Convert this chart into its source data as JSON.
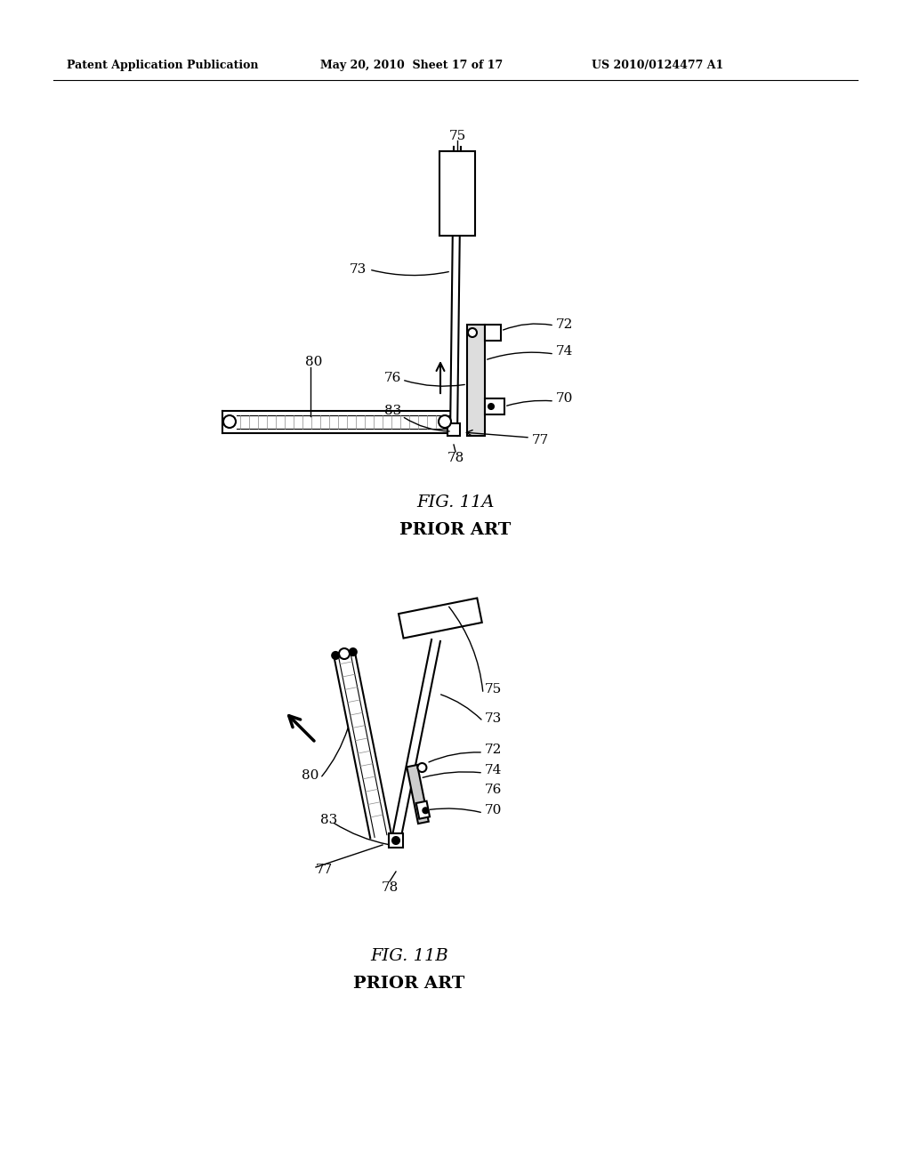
{
  "bg_color": "#ffffff",
  "header_text1": "Patent Application Publication",
  "header_text2": "May 20, 2010  Sheet 17 of 17",
  "header_text3": "US 2010/0124477 A1",
  "fig11a_caption": "FIG. 11A",
  "fig11b_caption": "FIG. 11B",
  "prior_art": "PRIOR ART"
}
